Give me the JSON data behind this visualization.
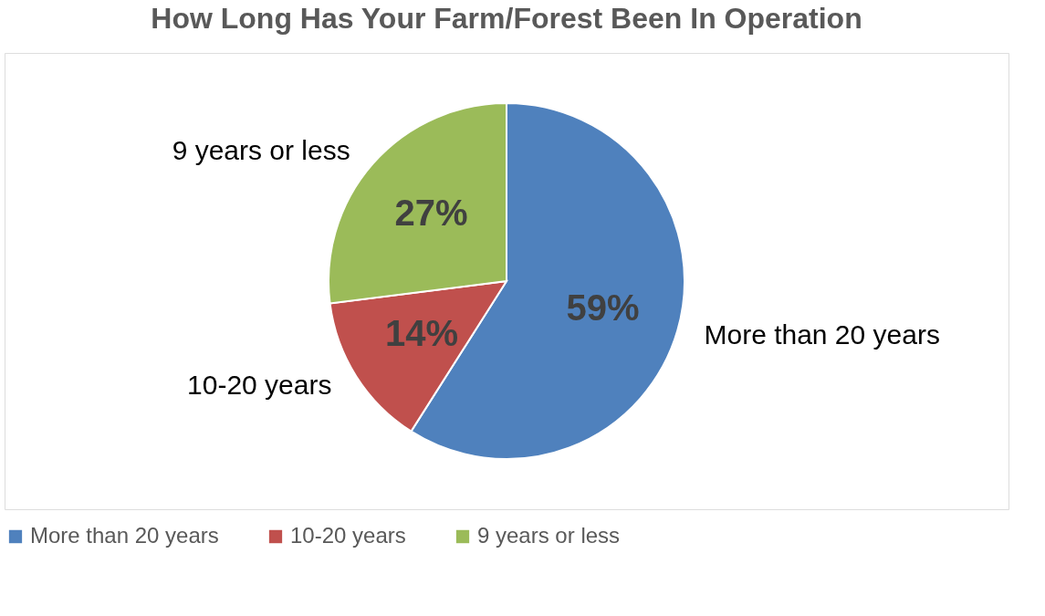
{
  "chart_data": {
    "type": "pie",
    "title": "How Long Has Your Farm/Forest Been In Operation",
    "categories": [
      "More than 20 years",
      "10-20 years",
      "9 years or less"
    ],
    "values": [
      59,
      14,
      27
    ],
    "value_labels": [
      "59%",
      "14%",
      "27%"
    ],
    "colors": [
      "#4f81bd",
      "#c0504d",
      "#9bbb59"
    ],
    "legend": "bottom"
  }
}
